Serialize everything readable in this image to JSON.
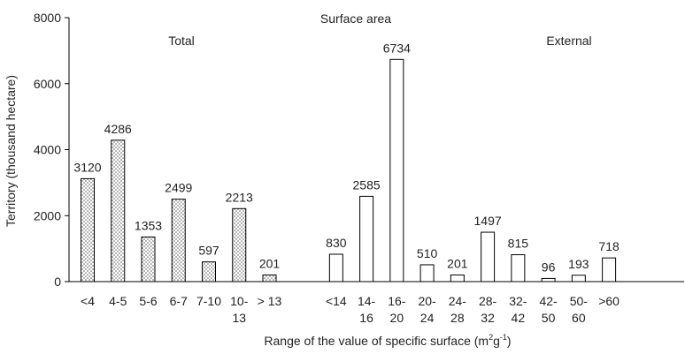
{
  "chart_data": {
    "type": "bar",
    "title": "Surface area",
    "xlabel": "Range of the value of specific surface (m",
    "xlabel_unit_sup1": "2",
    "xlabel_unit_mid": "g",
    "xlabel_unit_sup2": "-1",
    "xlabel_unit_end": ")",
    "ylabel": "Territory (thousand hectare)",
    "ylim": [
      0,
      8000
    ],
    "yticks": [
      "0",
      "2000",
      "4000",
      "6000",
      "8000"
    ],
    "legend": "none",
    "groups": [
      {
        "name": "Total",
        "pattern": "dotted",
        "categories": [
          [
            "<4"
          ],
          [
            "4-5"
          ],
          [
            "5-6"
          ],
          [
            "6-7"
          ],
          [
            "7-10"
          ],
          [
            "10-",
            "13"
          ],
          [
            "> 13"
          ]
        ],
        "values": [
          3120,
          4286,
          1353,
          2499,
          597,
          2213,
          201
        ],
        "labels": [
          "3120",
          "4286",
          "1353",
          "2499",
          "597",
          "2213",
          "201"
        ]
      },
      {
        "name": "External",
        "pattern": "open",
        "categories": [
          [
            "<14"
          ],
          [
            "14-",
            "16"
          ],
          [
            "16-",
            "20"
          ],
          [
            "20-",
            "24"
          ],
          [
            "24-",
            "28"
          ],
          [
            "28-",
            "32"
          ],
          [
            "32-",
            "42"
          ],
          [
            "42-",
            "50"
          ],
          [
            "50-",
            "60"
          ],
          [
            ">60"
          ]
        ],
        "values": [
          830,
          2585,
          6734,
          510,
          201,
          1497,
          815,
          96,
          193,
          718
        ],
        "labels": [
          "830",
          "2585",
          "6734",
          "510",
          "201",
          "1497",
          "815",
          "96",
          "193",
          "718"
        ]
      }
    ]
  }
}
